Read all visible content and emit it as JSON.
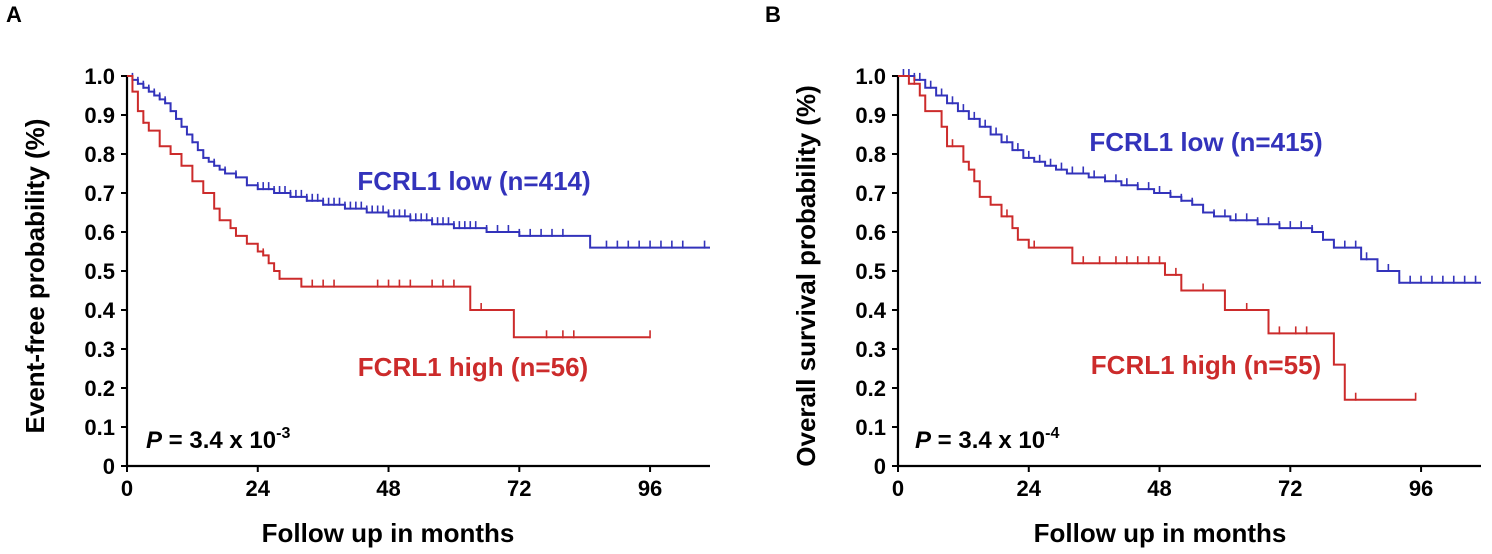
{
  "colors": {
    "low": "#3333bb",
    "high": "#cc2b2b",
    "axis": "#000000"
  },
  "chart_data": [
    {
      "type": "line",
      "panel": "A",
      "ylabel": "Event-free probability (%)",
      "xlabel": "Follow up in months",
      "xlim": [
        0,
        107
      ],
      "ylim": [
        0,
        1.0
      ],
      "xticks": [
        0,
        24,
        48,
        72,
        96
      ],
      "yticks": [
        "0",
        "0.1",
        "0.2",
        "0.3",
        "0.4",
        "0.5",
        "0.6",
        "0.7",
        "0.8",
        "0.9",
        "1.0"
      ],
      "pvalue": {
        "prefix": "P",
        "text": " = 3.4 x 10",
        "exponent": "-3"
      },
      "series": [
        {
          "name": "FCRL1 low (n=414)",
          "color_key": "low",
          "steps": [
            [
              0,
              1.0
            ],
            [
              1,
              0.99
            ],
            [
              2,
              0.98
            ],
            [
              3,
              0.97
            ],
            [
              4,
              0.96
            ],
            [
              5,
              0.95
            ],
            [
              6,
              0.94
            ],
            [
              7,
              0.93
            ],
            [
              8,
              0.91
            ],
            [
              9,
              0.89
            ],
            [
              10,
              0.87
            ],
            [
              11,
              0.85
            ],
            [
              12,
              0.83
            ],
            [
              13,
              0.81
            ],
            [
              14,
              0.79
            ],
            [
              15,
              0.78
            ],
            [
              16,
              0.77
            ],
            [
              17,
              0.76
            ],
            [
              18,
              0.75
            ],
            [
              20,
              0.74
            ],
            [
              22,
              0.72
            ],
            [
              24,
              0.71
            ],
            [
              27,
              0.7
            ],
            [
              30,
              0.69
            ],
            [
              33,
              0.68
            ],
            [
              36,
              0.67
            ],
            [
              40,
              0.66
            ],
            [
              44,
              0.65
            ],
            [
              48,
              0.64
            ],
            [
              52,
              0.63
            ],
            [
              56,
              0.62
            ],
            [
              60,
              0.61
            ],
            [
              66,
              0.6
            ],
            [
              72,
              0.59
            ],
            [
              85,
              0.56
            ],
            [
              107,
              0.56
            ]
          ],
          "censors": [
            1,
            2,
            3,
            4,
            5,
            6,
            7,
            8,
            9,
            10,
            12,
            14,
            16,
            18,
            20,
            22,
            24,
            25,
            26,
            27,
            28,
            29,
            30,
            31,
            32,
            33,
            34,
            35,
            36,
            37,
            38,
            39,
            40,
            41,
            42,
            43,
            44,
            45,
            46,
            47,
            48,
            49,
            50,
            51,
            52,
            53,
            54,
            55,
            56,
            57,
            58,
            59,
            60,
            61,
            62,
            63,
            64,
            66,
            68,
            70,
            72,
            74,
            76,
            78,
            80,
            88,
            90,
            92,
            94,
            96,
            98,
            100,
            102,
            106
          ]
        },
        {
          "name": "FCRL1 high (n=56)",
          "color_key": "high",
          "steps": [
            [
              0,
              1.0
            ],
            [
              1,
              0.96
            ],
            [
              2,
              0.91
            ],
            [
              3,
              0.88
            ],
            [
              4,
              0.86
            ],
            [
              6,
              0.82
            ],
            [
              8,
              0.8
            ],
            [
              10,
              0.77
            ],
            [
              12,
              0.73
            ],
            [
              14,
              0.7
            ],
            [
              16,
              0.66
            ],
            [
              17,
              0.63
            ],
            [
              19,
              0.61
            ],
            [
              20,
              0.59
            ],
            [
              22,
              0.57
            ],
            [
              24,
              0.55
            ],
            [
              25,
              0.54
            ],
            [
              26,
              0.52
            ],
            [
              27,
              0.5
            ],
            [
              28,
              0.48
            ],
            [
              32,
              0.46
            ],
            [
              63,
              0.4
            ],
            [
              71,
              0.33
            ],
            [
              96,
              0.33
            ]
          ],
          "censors": [
            3,
            25,
            28,
            34,
            36,
            38,
            46,
            48,
            50,
            52,
            56,
            58,
            60,
            65,
            77,
            80,
            82,
            96
          ]
        }
      ]
    },
    {
      "type": "line",
      "panel": "B",
      "ylabel": "Overall survival probability (%)",
      "xlabel": "Follow up in months",
      "xlim": [
        0,
        107
      ],
      "ylim": [
        0,
        1.0
      ],
      "xticks": [
        0,
        24,
        48,
        72,
        96
      ],
      "yticks": [
        "0",
        "0.1",
        "0.2",
        "0.3",
        "0.4",
        "0.5",
        "0.6",
        "0.7",
        "0.8",
        "0.9",
        "1.0"
      ],
      "pvalue": {
        "prefix": "P",
        "text": " = 3.4 x 10",
        "exponent": "-4"
      },
      "series": [
        {
          "name": "FCRL1 low (n=415)",
          "color_key": "low",
          "steps": [
            [
              0,
              1.0
            ],
            [
              3,
              0.99
            ],
            [
              5,
              0.97
            ],
            [
              7,
              0.95
            ],
            [
              9,
              0.93
            ],
            [
              11,
              0.91
            ],
            [
              13,
              0.89
            ],
            [
              15,
              0.87
            ],
            [
              17,
              0.85
            ],
            [
              19,
              0.83
            ],
            [
              21,
              0.81
            ],
            [
              23,
              0.79
            ],
            [
              25,
              0.78
            ],
            [
              27,
              0.77
            ],
            [
              29,
              0.76
            ],
            [
              31,
              0.75
            ],
            [
              35,
              0.74
            ],
            [
              38,
              0.73
            ],
            [
              41,
              0.72
            ],
            [
              44,
              0.71
            ],
            [
              47,
              0.7
            ],
            [
              50,
              0.69
            ],
            [
              52,
              0.68
            ],
            [
              54,
              0.67
            ],
            [
              56,
              0.65
            ],
            [
              58,
              0.64
            ],
            [
              61,
              0.63
            ],
            [
              66,
              0.62
            ],
            [
              70,
              0.61
            ],
            [
              76,
              0.6
            ],
            [
              78,
              0.58
            ],
            [
              80,
              0.56
            ],
            [
              85,
              0.53
            ],
            [
              88,
              0.5
            ],
            [
              92,
              0.47
            ],
            [
              107,
              0.47
            ]
          ],
          "censors": [
            1,
            2,
            3,
            4,
            6,
            8,
            10,
            12,
            14,
            16,
            18,
            20,
            22,
            24,
            26,
            28,
            30,
            32,
            34,
            36,
            38,
            40,
            42,
            44,
            46,
            48,
            50,
            52,
            54,
            56,
            58,
            60,
            62,
            64,
            66,
            68,
            70,
            72,
            74,
            76,
            78,
            80,
            82,
            84,
            86,
            88,
            90,
            92,
            94,
            96,
            98,
            100,
            102,
            104,
            106
          ]
        },
        {
          "name": "FCRL1 high (n=55)",
          "color_key": "high",
          "steps": [
            [
              0,
              1.0
            ],
            [
              2,
              0.98
            ],
            [
              4,
              0.95
            ],
            [
              5,
              0.91
            ],
            [
              8,
              0.87
            ],
            [
              9,
              0.82
            ],
            [
              12,
              0.78
            ],
            [
              13,
              0.76
            ],
            [
              14,
              0.73
            ],
            [
              15,
              0.69
            ],
            [
              17,
              0.67
            ],
            [
              19,
              0.64
            ],
            [
              21,
              0.61
            ],
            [
              22,
              0.58
            ],
            [
              24,
              0.56
            ],
            [
              32,
              0.52
            ],
            [
              49,
              0.49
            ],
            [
              52,
              0.45
            ],
            [
              60,
              0.4
            ],
            [
              68,
              0.34
            ],
            [
              80,
              0.26
            ],
            [
              82,
              0.17
            ],
            [
              95,
              0.17
            ]
          ],
          "censors": [
            3,
            10,
            20,
            25,
            34,
            37,
            40,
            42,
            44,
            46,
            48,
            51,
            56,
            64,
            70,
            73,
            75,
            84,
            95
          ]
        }
      ]
    }
  ]
}
